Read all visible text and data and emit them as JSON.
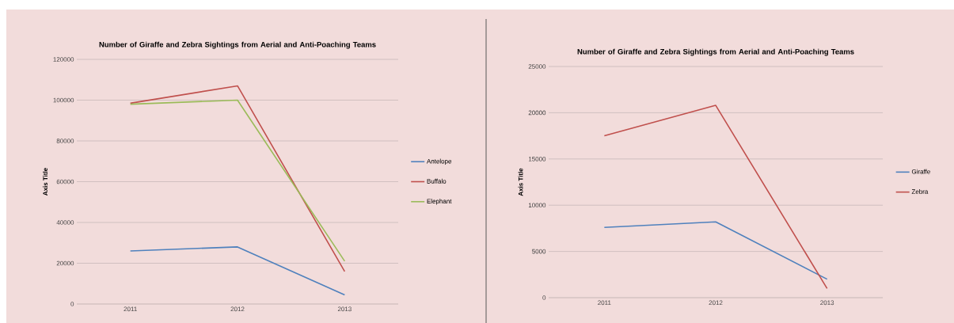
{
  "chart_data": [
    {
      "type": "line",
      "title": "Number of Giraffe and Zebra Sightings from Aerial and Anti-Poaching Teams",
      "ylabel": "Axis Title",
      "categories": [
        "2011",
        "2012",
        "2013"
      ],
      "series": [
        {
          "name": "Antelope",
          "color": "#4f81bd",
          "values": [
            26000,
            28000,
            4500
          ]
        },
        {
          "name": "Buffalo",
          "color": "#c0504d",
          "values": [
            98500,
            107000,
            16000
          ]
        },
        {
          "name": "Elephant",
          "color": "#9bbb59",
          "values": [
            98000,
            100000,
            21000
          ]
        }
      ],
      "ylim": [
        0,
        120000
      ],
      "yticks": [
        0,
        20000,
        40000,
        60000,
        80000,
        100000,
        120000
      ],
      "grid": "y",
      "legend": "right"
    },
    {
      "type": "line",
      "title": "Number of Giraffe and Zebra Sightings from Aerial and Anti-Poaching Teams",
      "ylabel": "Axis Title",
      "categories": [
        "2011",
        "2012",
        "2013"
      ],
      "series": [
        {
          "name": "Giraffe",
          "color": "#4f81bd",
          "values": [
            7600,
            8200,
            2000
          ]
        },
        {
          "name": "Zebra",
          "color": "#c0504d",
          "values": [
            17500,
            20800,
            1000
          ]
        }
      ],
      "ylim": [
        0,
        25000
      ],
      "yticks": [
        0,
        5000,
        10000,
        15000,
        20000,
        25000
      ],
      "grid": "y",
      "legend": "right"
    }
  ]
}
